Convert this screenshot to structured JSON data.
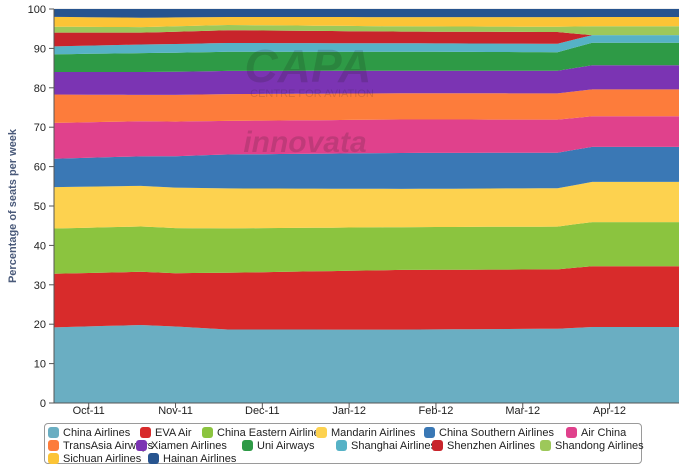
{
  "chart_data": {
    "type": "area",
    "stacked": true,
    "normalized_percent": true,
    "title": "",
    "xlabel": "",
    "ylabel": "Percentage of seats per week",
    "ylim": [
      0,
      100
    ],
    "yticks": [
      0,
      10,
      20,
      30,
      40,
      50,
      60,
      70,
      80,
      90,
      100
    ],
    "xtick_labels": [
      "Oct-11",
      "Nov-11",
      "Dec-11",
      "Jan-12",
      "Feb-12",
      "Mar-12",
      "Apr-12"
    ],
    "xtick_week_index": [
      2,
      7,
      12,
      17,
      22,
      27,
      32
    ],
    "grid": true,
    "legend_position": "bottom",
    "watermark": [
      "CAPA",
      "CENTRE FOR AVIATION",
      "innovata"
    ],
    "weeks": 37,
    "series": [
      {
        "name": "China Airlines",
        "color": "#6aaec2",
        "values": [
          [
            0,
            19.2
          ],
          [
            5,
            19.8
          ],
          [
            10,
            18.4
          ],
          [
            20,
            18.2
          ],
          [
            29,
            18.4
          ],
          [
            31,
            18.9
          ],
          [
            36,
            18.9
          ]
        ]
      },
      {
        "name": "EVA Air",
        "color": "#d82b2b",
        "values": [
          [
            0,
            13.6
          ],
          [
            5,
            13.5
          ],
          [
            7,
            13.4
          ],
          [
            10,
            14.2
          ],
          [
            20,
            14.8
          ],
          [
            29,
            14.7
          ],
          [
            31,
            15.1
          ],
          [
            36,
            15.1
          ]
        ]
      },
      {
        "name": "China Eastern Airlines",
        "color": "#8bc43f",
        "values": [
          [
            0,
            11.5
          ],
          [
            5,
            11.5
          ],
          [
            10,
            11.1
          ],
          [
            20,
            10.6
          ],
          [
            29,
            10.6
          ],
          [
            31,
            11.0
          ],
          [
            36,
            11.0
          ]
        ]
      },
      {
        "name": "Mandarin Airlines",
        "color": "#fdd24f",
        "values": [
          [
            0,
            10.5
          ],
          [
            5,
            10.3
          ],
          [
            10,
            10.0
          ],
          [
            20,
            9.5
          ],
          [
            29,
            9.5
          ],
          [
            31,
            10.0
          ],
          [
            36,
            10.0
          ]
        ]
      },
      {
        "name": "China Southern Airlines",
        "color": "#3a78b5",
        "values": [
          [
            0,
            7.2
          ],
          [
            5,
            7.5
          ],
          [
            10,
            8.5
          ],
          [
            20,
            8.9
          ],
          [
            29,
            8.8
          ],
          [
            31,
            8.7
          ],
          [
            36,
            8.7
          ]
        ]
      },
      {
        "name": "Air China",
        "color": "#e0418c",
        "values": [
          [
            0,
            9.1
          ],
          [
            5,
            8.9
          ],
          [
            10,
            8.4
          ],
          [
            20,
            8.3
          ],
          [
            29,
            8.2
          ],
          [
            31,
            7.6
          ],
          [
            36,
            7.6
          ]
        ]
      },
      {
        "name": "TransAsia Airways",
        "color": "#fd7c3b",
        "values": [
          [
            0,
            7.2
          ],
          [
            5,
            6.7
          ],
          [
            10,
            6.7
          ],
          [
            20,
            6.5
          ],
          [
            29,
            6.5
          ],
          [
            31,
            6.7
          ],
          [
            36,
            6.7
          ]
        ]
      },
      {
        "name": "Xiamen Airlines",
        "color": "#7b34b3",
        "values": [
          [
            0,
            5.7
          ],
          [
            5,
            5.8
          ],
          [
            10,
            5.8
          ],
          [
            20,
            5.6
          ],
          [
            29,
            5.6
          ],
          [
            31,
            6.0
          ],
          [
            36,
            6.0
          ]
        ]
      },
      {
        "name": "Uni Airways",
        "color": "#2e9a46",
        "values": [
          [
            0,
            4.5
          ],
          [
            5,
            4.8
          ],
          [
            10,
            4.8
          ],
          [
            20,
            4.7
          ],
          [
            29,
            4.6
          ],
          [
            31,
            5.6
          ],
          [
            36,
            5.6
          ]
        ]
      },
      {
        "name": "Shanghai Airlines",
        "color": "#56b2c6",
        "values": [
          [
            0,
            2.0
          ],
          [
            5,
            2.2
          ],
          [
            10,
            2.2
          ],
          [
            20,
            2.1
          ],
          [
            29,
            2.1
          ],
          [
            31,
            1.9
          ],
          [
            36,
            1.9
          ]
        ]
      },
      {
        "name": "Shenzhen Airlines",
        "color": "#c8242b",
        "values": [
          [
            0,
            3.5
          ],
          [
            5,
            3.0
          ],
          [
            10,
            3.2
          ],
          [
            20,
            2.9
          ],
          [
            29,
            2.9
          ],
          [
            31,
            0.0
          ],
          [
            36,
            0.0
          ]
        ]
      },
      {
        "name": "Shandong Airlines",
        "color": "#9dc85a",
        "values": [
          [
            0,
            1.5
          ],
          [
            5,
            1.4
          ],
          [
            10,
            1.3
          ],
          [
            20,
            1.3
          ],
          [
            29,
            1.3
          ],
          [
            31,
            2.2
          ],
          [
            36,
            2.2
          ]
        ]
      },
      {
        "name": "Sichuan Airlines",
        "color": "#fcc436",
        "values": [
          [
            0,
            2.5
          ],
          [
            5,
            2.4
          ],
          [
            10,
            2.0
          ],
          [
            20,
            2.3
          ],
          [
            29,
            2.4
          ],
          [
            31,
            2.3
          ],
          [
            36,
            2.3
          ]
        ]
      },
      {
        "name": "Hainan Airlines",
        "color": "#27548f",
        "values": [
          [
            0,
            2.0
          ],
          [
            5,
            2.2
          ],
          [
            10,
            2.0
          ],
          [
            20,
            2.0
          ],
          [
            29,
            2.0
          ],
          [
            31,
            2.0
          ],
          [
            36,
            2.0
          ]
        ]
      }
    ]
  }
}
